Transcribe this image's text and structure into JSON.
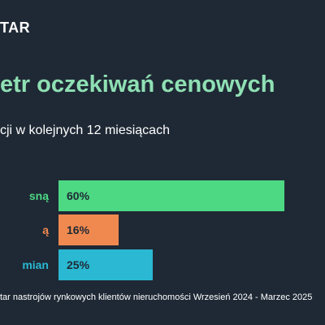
{
  "brand": "TAR",
  "title": "etr oczekiwań cenowych",
  "subtitle": "cji w kolejnych 12 miesiącach",
  "footer": "tar nastrojów rynkowych klientów nieruchomości Wrzesień 2024 - Marzec 2025",
  "chart_data": {
    "type": "bar",
    "orientation": "horizontal",
    "categories": [
      "sną",
      "ą",
      "mian"
    ],
    "values": [
      60,
      16,
      25
    ],
    "value_labels": [
      "60%",
      "16%",
      "25%"
    ],
    "colors": [
      "#4dd884",
      "#f0894f",
      "#2ab8d2"
    ],
    "label_colors": [
      "#4dd884",
      "#f0894f",
      "#2ab8d2"
    ],
    "xlim": [
      0,
      60
    ]
  }
}
